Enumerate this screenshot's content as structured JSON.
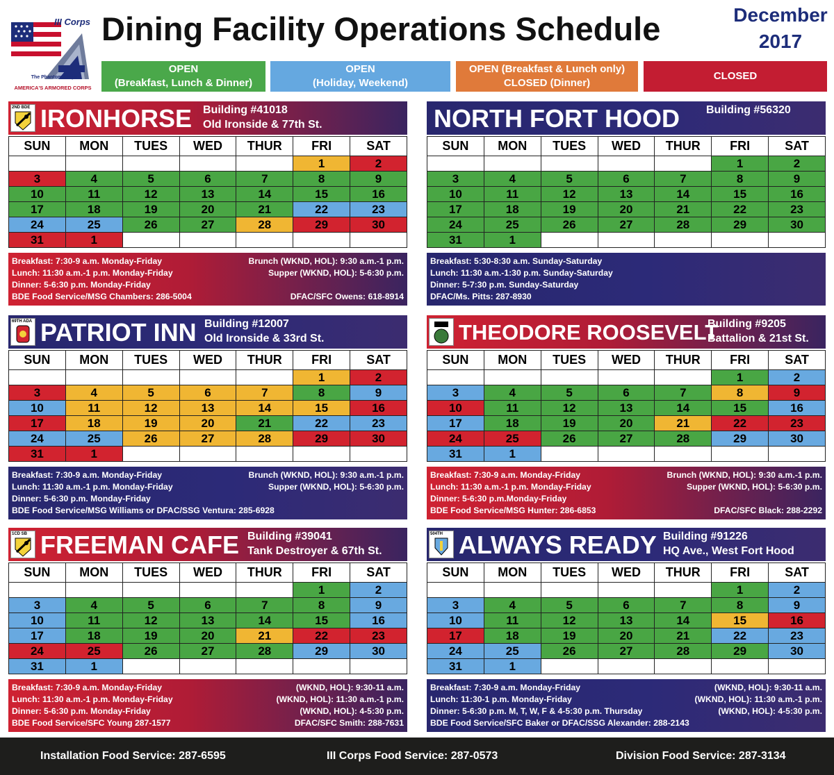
{
  "header": {
    "corps_label": "III Corps",
    "phantom_label": "The Phantom Corps",
    "armored_label": "AMERICA'S ARMORED CORPS",
    "title": "Dining Facility Operations Schedule",
    "month": "December",
    "year": "2017"
  },
  "legend": {
    "green": [
      "OPEN",
      "(Breakfast, Lunch & Dinner)"
    ],
    "blue": [
      "OPEN",
      "(Holiday, Weekend)"
    ],
    "orange": [
      "OPEN (Breakfast & Lunch only)",
      "CLOSED (Dinner)"
    ],
    "red": [
      "CLOSED"
    ]
  },
  "colors": {
    "green": "#49a644",
    "blue": "#68a9e0",
    "red": "#d2232f",
    "orange": "#f0b633",
    "white": "#ffffff"
  },
  "weekdays": [
    "SUN",
    "MON",
    "TUES",
    "WED",
    "THUR",
    "FRI",
    "SAT"
  ],
  "dates": [
    [
      "",
      "",
      "",
      "",
      "",
      "1",
      "2"
    ],
    [
      "3",
      "4",
      "5",
      "6",
      "7",
      "8",
      "9"
    ],
    [
      "10",
      "11",
      "12",
      "13",
      "14",
      "15",
      "16"
    ],
    [
      "17",
      "18",
      "19",
      "20",
      "21",
      "22",
      "23"
    ],
    [
      "24",
      "25",
      "26",
      "27",
      "28",
      "29",
      "30"
    ],
    [
      "31",
      "1",
      "",
      "",
      "",
      "",
      ""
    ]
  ],
  "panels": [
    {
      "id": "ironhorse",
      "emblem_code": "2ND BDE",
      "name": "IRONHORSE",
      "building": "Building #41018",
      "street": "Old Ironside & 77th St.",
      "status": [
        [
          "w",
          "w",
          "w",
          "w",
          "w",
          "o",
          "r"
        ],
        [
          "r",
          "g",
          "g",
          "g",
          "g",
          "g",
          "g"
        ],
        [
          "g",
          "g",
          "g",
          "g",
          "g",
          "g",
          "g"
        ],
        [
          "g",
          "g",
          "g",
          "g",
          "g",
          "b",
          "b"
        ],
        [
          "b",
          "b",
          "g",
          "g",
          "o",
          "r",
          "r"
        ],
        [
          "r",
          "r",
          "w",
          "w",
          "w",
          "w",
          "w"
        ]
      ],
      "footer": [
        [
          "Breakfast: 7:30-9 a.m. Monday-Friday",
          "Brunch (WKND, HOL): 9:30 a.m.-1 p.m."
        ],
        [
          "Lunch: 11:30 a.m.-1 p.m. Monday-Friday",
          "Supper (WKND, HOL): 5-6:30 p.m."
        ],
        [
          "Dinner: 5-6:30 p.m. Monday-Friday",
          ""
        ],
        [
          "BDE Food Service/MSG Chambers: 286-5004",
          "DFAC/SFC Owens: 618-8914"
        ]
      ]
    },
    {
      "id": "north-fort-hood",
      "emblem_code": "",
      "name": "NORTH FORT HOOD",
      "building": "Building #56320",
      "street": "",
      "status": [
        [
          "w",
          "w",
          "w",
          "w",
          "w",
          "g",
          "g"
        ],
        [
          "g",
          "g",
          "g",
          "g",
          "g",
          "g",
          "g"
        ],
        [
          "g",
          "g",
          "g",
          "g",
          "g",
          "g",
          "g"
        ],
        [
          "g",
          "g",
          "g",
          "g",
          "g",
          "g",
          "g"
        ],
        [
          "g",
          "g",
          "g",
          "g",
          "g",
          "g",
          "g"
        ],
        [
          "g",
          "g",
          "w",
          "w",
          "w",
          "w",
          "w"
        ]
      ],
      "footer": [
        [
          "Breakfast: 5:30-8:30 a.m. Sunday-Saturday",
          ""
        ],
        [
          "Lunch: 11:30 a.m.-1:30 p.m. Sunday-Saturday",
          ""
        ],
        [
          "Dinner: 5-7:30 p.m. Sunday-Saturday",
          ""
        ],
        [
          "DFAC/Ms. Pitts: 287-8930",
          ""
        ]
      ]
    },
    {
      "id": "patriot-inn",
      "emblem_code": "69TH ADA",
      "name": "PATRIOT INN",
      "building": "Building #12007",
      "street": "Old Ironside & 33rd St.",
      "status": [
        [
          "w",
          "w",
          "w",
          "w",
          "w",
          "o",
          "r"
        ],
        [
          "r",
          "o",
          "o",
          "o",
          "o",
          "g",
          "b"
        ],
        [
          "b",
          "o",
          "o",
          "o",
          "o",
          "o",
          "r"
        ],
        [
          "r",
          "o",
          "o",
          "o",
          "g",
          "b",
          "b"
        ],
        [
          "b",
          "b",
          "o",
          "o",
          "o",
          "r",
          "r"
        ],
        [
          "r",
          "r",
          "w",
          "w",
          "w",
          "w",
          "w"
        ]
      ],
      "footer": [
        [
          "Breakfast: 7:30-9 a.m. Monday-Friday",
          "Brunch (WKND, HOL): 9:30 a.m.-1 p.m."
        ],
        [
          "Lunch: 11:30 a.m.-1 p.m. Monday-Friday",
          "Supper (WKND, HOL): 5-6:30 p.m."
        ],
        [
          "Dinner: 5-6:30 p.m. Monday-Friday",
          ""
        ],
        [
          "BDE Food Service/MSG Williams or DFAC/SSG Ventura: 285-6928",
          ""
        ]
      ]
    },
    {
      "id": "theodore-roosevelt",
      "emblem_code": "",
      "name": "THEODORE ROOSEVELT",
      "building": "Building #9205",
      "street": "Battalion & 21st St.",
      "status": [
        [
          "w",
          "w",
          "w",
          "w",
          "w",
          "g",
          "b"
        ],
        [
          "b",
          "g",
          "g",
          "g",
          "g",
          "o",
          "r"
        ],
        [
          "r",
          "g",
          "g",
          "g",
          "g",
          "g",
          "b"
        ],
        [
          "b",
          "g",
          "g",
          "g",
          "o",
          "r",
          "r"
        ],
        [
          "r",
          "r",
          "g",
          "g",
          "g",
          "b",
          "b"
        ],
        [
          "b",
          "b",
          "w",
          "w",
          "w",
          "w",
          "w"
        ]
      ],
      "footer": [
        [
          "Breakfast: 7:30-9 a.m. Monday-Friday",
          "Brunch (WKND, HOL): 9:30 a.m.-1 p.m."
        ],
        [
          "Lunch: 11:30 a.m.-1 p.m. Monday-Friday",
          "Supper (WKND, HOL): 5-6:30 p.m."
        ],
        [
          "Dinner: 5-6:30 p.m.Monday-Friday",
          ""
        ],
        [
          "BDE Food Service/MSG Hunter: 286-6853",
          "DFAC/SFC Black: 288-2292"
        ]
      ]
    },
    {
      "id": "freeman-cafe",
      "emblem_code": "1CD SB",
      "name": "FREEMAN CAFE",
      "building": "Building #39041",
      "street": "Tank Destroyer & 67th St.",
      "status": [
        [
          "w",
          "w",
          "w",
          "w",
          "w",
          "g",
          "b"
        ],
        [
          "b",
          "g",
          "g",
          "g",
          "g",
          "g",
          "b"
        ],
        [
          "b",
          "g",
          "g",
          "g",
          "g",
          "g",
          "b"
        ],
        [
          "b",
          "g",
          "g",
          "g",
          "o",
          "r",
          "r"
        ],
        [
          "r",
          "r",
          "g",
          "g",
          "g",
          "b",
          "b"
        ],
        [
          "b",
          "b",
          "w",
          "w",
          "w",
          "w",
          "w"
        ]
      ],
      "footer": [
        [
          "Breakfast: 7:30-9 a.m. Monday-Friday",
          "(WKND, HOL): 9:30-11 a.m."
        ],
        [
          "Lunch: 11:30 a.m.-1 p.m. Monday-Friday",
          "(WKND, HOL): 11:30 a.m.-1 p.m."
        ],
        [
          "Dinner: 5-6:30 p.m. Monday-Friday",
          "(WKND, HOL): 4-5:30 p.m."
        ],
        [
          "BDE Food Service/SFC Young 287-1577",
          "DFAC/SFC Smith: 288-7631"
        ]
      ]
    },
    {
      "id": "always-ready",
      "emblem_code": "504TH",
      "name": "ALWAYS READY",
      "building": "Building #91226",
      "street": "HQ Ave., West Fort Hood",
      "status": [
        [
          "w",
          "w",
          "w",
          "w",
          "w",
          "g",
          "b"
        ],
        [
          "b",
          "g",
          "g",
          "g",
          "g",
          "g",
          "b"
        ],
        [
          "b",
          "g",
          "g",
          "g",
          "g",
          "o",
          "r"
        ],
        [
          "r",
          "g",
          "g",
          "g",
          "g",
          "b",
          "b"
        ],
        [
          "b",
          "b",
          "g",
          "g",
          "g",
          "g",
          "b"
        ],
        [
          "b",
          "b",
          "w",
          "w",
          "w",
          "w",
          "w"
        ]
      ],
      "footer": [
        [
          "Breakfast: 7:30-9 a.m. Monday-Friday",
          "(WKND, HOL): 9:30-11 a.m."
        ],
        [
          "Lunch: 11:30-1 p.m. Monday-Friday",
          "(WKND, HOL): 11:30 a.m.-1 p.m."
        ],
        [
          "Dinner: 5-6:30 p.m. M, T, W, F & 4-5:30 p.m. Thursday",
          "(WKND, HOL): 4-5:30 p.m."
        ],
        [
          "BDE Food Service/SFC Baker or DFAC/SSG Alexander: 288-2143",
          ""
        ]
      ]
    }
  ],
  "bottom_bar": {
    "installation": "Installation Food Service: 287-6595",
    "corps": "III Corps Food Service: 287-0573",
    "division": "Division Food Service: 287-3134"
  }
}
